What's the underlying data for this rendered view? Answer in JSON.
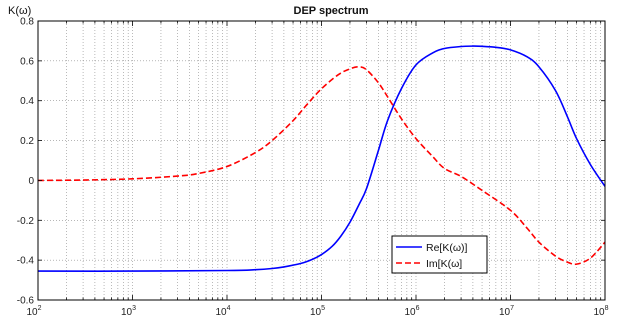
{
  "chart_data": {
    "type": "line",
    "title": "DEP spectrum",
    "ylabel": "K(ω)",
    "xlabel": "",
    "xscale": "log",
    "xlim": [
      100,
      100000000
    ],
    "ylim": [
      -0.6,
      0.8
    ],
    "grid": "major and minor (dotted)",
    "legend_position": "lower-right",
    "yticks": [
      {
        "v": -0.6,
        "label": "-0.6"
      },
      {
        "v": -0.4,
        "label": "-0.4"
      },
      {
        "v": -0.2,
        "label": "-0.2"
      },
      {
        "v": 0,
        "label": "0"
      },
      {
        "v": 0.2,
        "label": "0.2"
      },
      {
        "v": 0.4,
        "label": "0.4"
      },
      {
        "v": 0.6,
        "label": "0.6"
      },
      {
        "v": 0.8,
        "label": "0.8"
      }
    ],
    "xticks": [
      {
        "v": 100,
        "base": "10",
        "exp": "2"
      },
      {
        "v": 1000,
        "base": "10",
        "exp": "3"
      },
      {
        "v": 10000,
        "base": "10",
        "exp": "4"
      },
      {
        "v": 100000,
        "base": "10",
        "exp": "5"
      },
      {
        "v": 1000000,
        "base": "10",
        "exp": "6"
      },
      {
        "v": 10000000,
        "base": "10",
        "exp": "7"
      },
      {
        "v": 100000000,
        "base": "10",
        "exp": "8"
      }
    ],
    "series": [
      {
        "name": "Re[K(ω)]",
        "color": "#0000ff",
        "style": "solid",
        "x": [
          100,
          1000,
          10000,
          20000,
          30000,
          40000,
          60000,
          80000,
          100000,
          130000,
          160000,
          200000,
          250000,
          300000,
          400000,
          500000,
          700000,
          1000000,
          1500000,
          2000000,
          3000000,
          4000000,
          5000000,
          7000000,
          10000000,
          15000000,
          20000000,
          30000000,
          40000000,
          50000000,
          70000000,
          100000000
        ],
        "y": [
          -0.455,
          -0.455,
          -0.452,
          -0.448,
          -0.442,
          -0.434,
          -0.417,
          -0.396,
          -0.372,
          -0.33,
          -0.28,
          -0.21,
          -0.12,
          -0.04,
          0.15,
          0.3,
          0.46,
          0.58,
          0.64,
          0.662,
          0.672,
          0.674,
          0.673,
          0.668,
          0.655,
          0.62,
          0.57,
          0.45,
          0.32,
          0.21,
          0.08,
          -0.03
        ]
      },
      {
        "name": "Im[K(ω]",
        "color": "#ff0000",
        "style": "dashed",
        "x": [
          100,
          300,
          1000,
          3000,
          5000,
          10000,
          20000,
          30000,
          50000,
          70000,
          100000,
          150000,
          200000,
          250000,
          300000,
          400000,
          500000,
          700000,
          1000000,
          1500000,
          2000000,
          3000000,
          5000000,
          10000000,
          15000000,
          20000000,
          30000000,
          40000000,
          50000000,
          70000000,
          100000000
        ],
        "y": [
          0.0,
          0.002,
          0.008,
          0.022,
          0.035,
          0.07,
          0.14,
          0.2,
          0.3,
          0.38,
          0.46,
          0.53,
          0.56,
          0.57,
          0.555,
          0.49,
          0.42,
          0.31,
          0.21,
          0.12,
          0.06,
          0.02,
          -0.05,
          -0.15,
          -0.24,
          -0.31,
          -0.38,
          -0.41,
          -0.42,
          -0.39,
          -0.31
        ]
      }
    ]
  }
}
